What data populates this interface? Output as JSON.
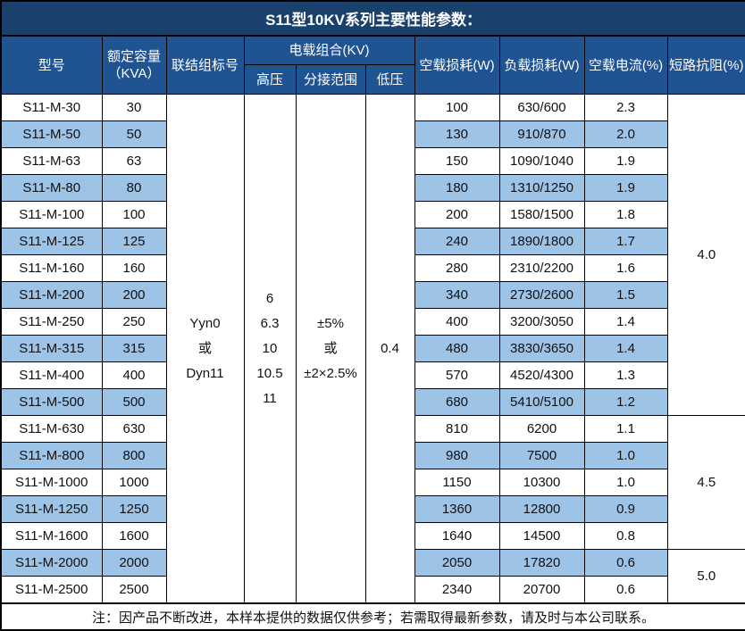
{
  "title": "S11型10KV系列主要性能参数：",
  "colors": {
    "title_bg": "#19416c",
    "header_bg": "#1f5391",
    "stripe_blue": "#9dc3e6",
    "grid_border": "#000000",
    "header_text": "#ffffff",
    "body_text": "#111111"
  },
  "header": {
    "model": "型号",
    "capacity": "额定容量\n（KVA）",
    "vector_group": "联结组标号",
    "voltage_combo": "电载组合(KV)",
    "hv": "高压",
    "tap_range": "分接范围",
    "lv": "低压",
    "no_load_loss": "空载损耗(W)",
    "load_loss": "负载损耗(W)",
    "no_load_current": "空载电流(%)",
    "impedance": "短路抗阻(%)"
  },
  "merged": {
    "vector_group": [
      "Yyn0",
      "或",
      "Dyn11"
    ],
    "hv": [
      "6",
      "6.3",
      "10",
      "10.5",
      "11"
    ],
    "tap_range": [
      "±5%",
      "或",
      "±2×2.5%"
    ],
    "lv": "0.4"
  },
  "impedance_groups": [
    {
      "value": "4.0",
      "rows": 12
    },
    {
      "value": "4.5",
      "rows": 5
    },
    {
      "value": "5.0",
      "rows": 2
    }
  ],
  "rows": [
    {
      "model": "S11-M-30",
      "capacity": "30",
      "no_load_loss": "100",
      "load_loss": "630/600",
      "no_load_current": "2.3"
    },
    {
      "model": "S11-M-50",
      "capacity": "50",
      "no_load_loss": "130",
      "load_loss": "910/870",
      "no_load_current": "2.0"
    },
    {
      "model": "S11-M-63",
      "capacity": "63",
      "no_load_loss": "150",
      "load_loss": "1090/1040",
      "no_load_current": "1.9"
    },
    {
      "model": "S11-M-80",
      "capacity": "80",
      "no_load_loss": "180",
      "load_loss": "1310/1250",
      "no_load_current": "1.9"
    },
    {
      "model": "S11-M-100",
      "capacity": "100",
      "no_load_loss": "200",
      "load_loss": "1580/1500",
      "no_load_current": "1.8"
    },
    {
      "model": "S11-M-125",
      "capacity": "125",
      "no_load_loss": "240",
      "load_loss": "1890/1800",
      "no_load_current": "1.7"
    },
    {
      "model": "S11-M-160",
      "capacity": "160",
      "no_load_loss": "280",
      "load_loss": "2310/2200",
      "no_load_current": "1.6"
    },
    {
      "model": "S11-M-200",
      "capacity": "200",
      "no_load_loss": "340",
      "load_loss": "2730/2600",
      "no_load_current": "1.5"
    },
    {
      "model": "S11-M-250",
      "capacity": "250",
      "no_load_loss": "400",
      "load_loss": "3200/3050",
      "no_load_current": "1.4"
    },
    {
      "model": "S11-M-315",
      "capacity": "315",
      "no_load_loss": "480",
      "load_loss": "3830/3650",
      "no_load_current": "1.4"
    },
    {
      "model": "S11-M-400",
      "capacity": "400",
      "no_load_loss": "570",
      "load_loss": "4520/4300",
      "no_load_current": "1.3"
    },
    {
      "model": "S11-M-500",
      "capacity": "500",
      "no_load_loss": "680",
      "load_loss": "5410/5100",
      "no_load_current": "1.2"
    },
    {
      "model": "S11-M-630",
      "capacity": "630",
      "no_load_loss": "810",
      "load_loss": "6200",
      "no_load_current": "1.1"
    },
    {
      "model": "S11-M-800",
      "capacity": "800",
      "no_load_loss": "980",
      "load_loss": "7500",
      "no_load_current": "1.0"
    },
    {
      "model": "S11-M-1000",
      "capacity": "1000",
      "no_load_loss": "1150",
      "load_loss": "10300",
      "no_load_current": "1.0"
    },
    {
      "model": "S11-M-1250",
      "capacity": "1250",
      "no_load_loss": "1360",
      "load_loss": "12800",
      "no_load_current": "0.9"
    },
    {
      "model": "S11-M-1600",
      "capacity": "1600",
      "no_load_loss": "1640",
      "load_loss": "14500",
      "no_load_current": "0.8"
    },
    {
      "model": "S11-M-2000",
      "capacity": "2000",
      "no_load_loss": "2050",
      "load_loss": "17820",
      "no_load_current": "0.6"
    },
    {
      "model": "S11-M-2500",
      "capacity": "2500",
      "no_load_loss": "2340",
      "load_loss": "20700",
      "no_load_current": "0.6"
    }
  ],
  "note": "注：因产品不断改进，本样本提供的数据仅供参考；若需取得最新参数，请及时与本公司联系。"
}
